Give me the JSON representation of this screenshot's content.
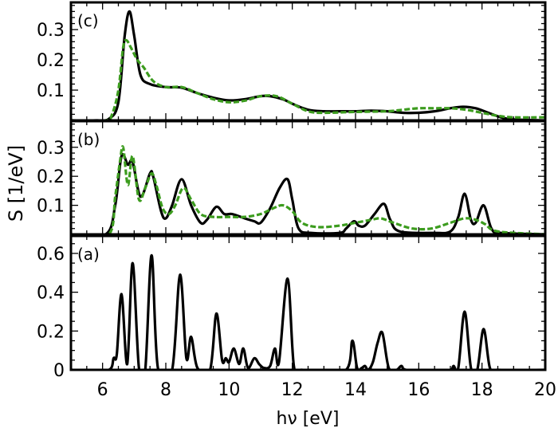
{
  "chart_data": [
    {
      "type": "line",
      "panel_label": "(c)",
      "xlim": [
        5,
        20
      ],
      "ylim": [
        0,
        0.39
      ],
      "yticks": [
        0.1,
        0.2,
        0.3
      ],
      "series": [
        {
          "style": "solid",
          "color": "#000000",
          "x": [
            5,
            5.8,
            6.2,
            6.5,
            6.7,
            6.85,
            7.0,
            7.2,
            7.5,
            8.0,
            8.5,
            9.0,
            9.5,
            10.0,
            10.5,
            11.0,
            11.3,
            11.7,
            12.0,
            12.5,
            13.0,
            13.5,
            14.0,
            14.5,
            15.0,
            15.5,
            16.0,
            16.5,
            17.0,
            17.4,
            17.8,
            18.2,
            18.6,
            19.0,
            20
          ],
          "y": [
            0,
            0,
            0.005,
            0.06,
            0.28,
            0.36,
            0.28,
            0.15,
            0.12,
            0.11,
            0.108,
            0.09,
            0.075,
            0.066,
            0.07,
            0.08,
            0.08,
            0.07,
            0.055,
            0.035,
            0.03,
            0.03,
            0.03,
            0.032,
            0.03,
            0.025,
            0.025,
            0.03,
            0.04,
            0.045,
            0.04,
            0.025,
            0.01,
            0.003,
            0
          ]
        },
        {
          "style": "dashed",
          "color": "#3c9c1e",
          "x": [
            5,
            6.1,
            6.3,
            6.5,
            6.65,
            6.75,
            6.9,
            7.1,
            7.3,
            7.6,
            8.0,
            8.5,
            9.0,
            9.5,
            10.0,
            10.5,
            11.0,
            11.5,
            12.0,
            12.5,
            13.0,
            14.0,
            15.0,
            15.5,
            16.0,
            16.5,
            17.0,
            17.5,
            18.0,
            18.5,
            19.0,
            20
          ],
          "y": [
            0,
            0,
            0.02,
            0.1,
            0.24,
            0.265,
            0.24,
            0.2,
            0.175,
            0.13,
            0.11,
            0.11,
            0.09,
            0.07,
            0.06,
            0.065,
            0.08,
            0.08,
            0.055,
            0.03,
            0.025,
            0.028,
            0.03,
            0.035,
            0.04,
            0.04,
            0.04,
            0.035,
            0.025,
            0.015,
            0.01,
            0.01
          ]
        }
      ]
    },
    {
      "type": "line",
      "panel_label": "(b)",
      "xlim": [
        5,
        20
      ],
      "ylim": [
        0,
        0.39
      ],
      "yticks": [
        0.1,
        0.2,
        0.3
      ],
      "series": [
        {
          "style": "solid",
          "color": "#000000",
          "x": [
            5,
            6.1,
            6.4,
            6.6,
            6.8,
            6.95,
            7.2,
            7.5,
            7.6,
            7.85,
            8.0,
            8.2,
            8.5,
            8.8,
            9.1,
            9.3,
            9.6,
            9.85,
            10.1,
            10.5,
            10.8,
            11.0,
            11.3,
            11.6,
            11.85,
            12.0,
            12.2,
            12.6,
            13.5,
            13.7,
            13.95,
            14.1,
            14.3,
            14.6,
            14.9,
            15.1,
            15.4,
            16.5,
            17.0,
            17.25,
            17.45,
            17.65,
            17.8,
            18.05,
            18.3,
            18.6,
            20
          ],
          "y": [
            0,
            0,
            0.1,
            0.27,
            0.24,
            0.25,
            0.13,
            0.21,
            0.2,
            0.08,
            0.055,
            0.1,
            0.19,
            0.1,
            0.04,
            0.05,
            0.095,
            0.07,
            0.07,
            0.055,
            0.045,
            0.04,
            0.09,
            0.16,
            0.19,
            0.12,
            0.02,
            0.005,
            0.005,
            0.02,
            0.045,
            0.03,
            0.03,
            0.07,
            0.105,
            0.05,
            0.01,
            0.005,
            0.01,
            0.06,
            0.14,
            0.05,
            0.04,
            0.1,
            0.02,
            0.005,
            0
          ]
        },
        {
          "style": "dashed",
          "color": "#3c9c1e",
          "x": [
            5,
            6.2,
            6.4,
            6.55,
            6.65,
            6.8,
            6.95,
            7.15,
            7.35,
            7.55,
            7.7,
            7.9,
            8.1,
            8.3,
            8.55,
            8.8,
            9.1,
            9.5,
            10.0,
            10.5,
            11.0,
            11.4,
            11.7,
            12.0,
            12.3,
            12.8,
            13.5,
            14.0,
            14.5,
            14.8,
            15.2,
            15.8,
            16.4,
            17.0,
            17.45,
            17.8,
            18.1,
            18.5,
            20
          ],
          "y": [
            0,
            0,
            0.13,
            0.25,
            0.3,
            0.17,
            0.27,
            0.12,
            0.16,
            0.21,
            0.17,
            0.09,
            0.07,
            0.1,
            0.16,
            0.12,
            0.07,
            0.06,
            0.06,
            0.06,
            0.07,
            0.09,
            0.1,
            0.08,
            0.04,
            0.025,
            0.03,
            0.04,
            0.05,
            0.055,
            0.04,
            0.02,
            0.02,
            0.04,
            0.055,
            0.05,
            0.035,
            0.01,
            0
          ]
        }
      ]
    },
    {
      "type": "line",
      "panel_label": "(a)",
      "xlim": [
        5,
        20
      ],
      "ylim": [
        0,
        0.69
      ],
      "yticks": [
        0,
        0.2,
        0.4,
        0.6
      ],
      "xticks": [
        6,
        8,
        10,
        12,
        14,
        16,
        18,
        20
      ],
      "xlabel": "hν [eV]",
      "series": [
        {
          "style": "solid",
          "color": "#000000",
          "x": [
            5,
            6.2,
            6.35,
            6.45,
            6.6,
            6.78,
            6.95,
            7.15,
            7.35,
            7.55,
            7.75,
            8.2,
            8.45,
            8.65,
            8.8,
            9.0,
            9.4,
            9.6,
            9.78,
            9.9,
            10.0,
            10.15,
            10.32,
            10.45,
            10.6,
            10.8,
            10.95,
            11.1,
            11.3,
            11.45,
            11.58,
            11.85,
            12.05,
            12.3,
            13.7,
            13.9,
            14.05,
            14.2,
            14.3,
            14.4,
            14.55,
            14.7,
            14.85,
            15.05,
            15.3,
            15.45,
            15.6,
            17.0,
            17.1,
            17.25,
            17.45,
            17.65,
            17.85,
            18.05,
            18.25,
            18.5,
            20
          ],
          "y": [
            0,
            0,
            0.06,
            0.08,
            0.39,
            0.03,
            0.55,
            0.01,
            0,
            0.59,
            0.01,
            0,
            0.49,
            0.06,
            0.17,
            0.01,
            0,
            0.29,
            0.05,
            0.06,
            0.04,
            0.11,
            0.03,
            0.11,
            0.01,
            0.06,
            0.03,
            0.01,
            0.02,
            0.11,
            0.04,
            0.47,
            0.02,
            0,
            0,
            0.15,
            0.01,
            0.01,
            0.02,
            0,
            0.04,
            0.14,
            0.19,
            0.01,
            0,
            0.02,
            0,
            0,
            0.02,
            0.01,
            0.3,
            0.01,
            0,
            0.21,
            0.01,
            0,
            0
          ]
        }
      ]
    }
  ],
  "ylabel": "S  [1/eV]"
}
